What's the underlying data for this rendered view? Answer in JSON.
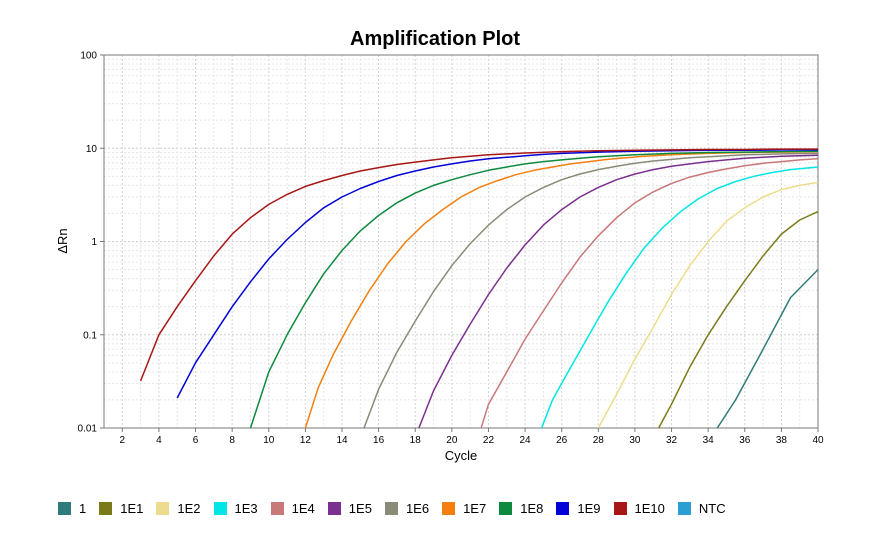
{
  "chart_data": {
    "type": "line",
    "title": "Amplification Plot",
    "xlabel": "Cycle",
    "ylabel": "ΔRn",
    "xlim": [
      1,
      40
    ],
    "ylim": [
      0.01,
      100
    ],
    "yscale": "log",
    "grid": true,
    "legend_position": "bottom",
    "x_ticks": [
      2,
      4,
      6,
      8,
      10,
      12,
      14,
      16,
      18,
      20,
      22,
      24,
      26,
      28,
      30,
      32,
      34,
      36,
      38,
      40
    ],
    "y_ticks": [
      {
        "value": 0.01,
        "label": "0.01"
      },
      {
        "value": 0.1,
        "label": "0.1"
      },
      {
        "value": 1,
        "label": "1"
      },
      {
        "value": 10,
        "label": "10"
      },
      {
        "value": 100,
        "label": "100"
      }
    ],
    "series": [
      {
        "name": "1",
        "color": "#2f7b7b",
        "points": [
          [
            34.5,
            0.01
          ],
          [
            35.5,
            0.02
          ],
          [
            37,
            0.07
          ],
          [
            38.5,
            0.25
          ],
          [
            40,
            0.5
          ]
        ]
      },
      {
        "name": "1E1",
        "color": "#7a7a1a",
        "points": [
          [
            31.3,
            0.01
          ],
          [
            32,
            0.018
          ],
          [
            33,
            0.045
          ],
          [
            34,
            0.1
          ],
          [
            35,
            0.2
          ],
          [
            36,
            0.38
          ],
          [
            37,
            0.7
          ],
          [
            38,
            1.2
          ],
          [
            39,
            1.7
          ],
          [
            40,
            2.1
          ]
        ]
      },
      {
        "name": "1E2",
        "color": "#eddc8d",
        "points": [
          [
            28,
            0.01
          ],
          [
            29,
            0.023
          ],
          [
            30,
            0.055
          ],
          [
            31,
            0.12
          ],
          [
            32,
            0.27
          ],
          [
            33,
            0.55
          ],
          [
            34,
            1.0
          ],
          [
            35,
            1.65
          ],
          [
            36,
            2.3
          ],
          [
            37,
            3.0
          ],
          [
            38,
            3.6
          ],
          [
            39,
            4.0
          ],
          [
            40,
            4.3
          ]
        ]
      },
      {
        "name": "1E3",
        "color": "#00e6e6",
        "points": [
          [
            24.9,
            0.01
          ],
          [
            25.5,
            0.02
          ],
          [
            26.5,
            0.045
          ],
          [
            27.5,
            0.1
          ],
          [
            28.5,
            0.22
          ],
          [
            29.5,
            0.45
          ],
          [
            30.5,
            0.85
          ],
          [
            31.5,
            1.4
          ],
          [
            32.5,
            2.1
          ],
          [
            33.5,
            2.9
          ],
          [
            34.5,
            3.7
          ],
          [
            35.5,
            4.4
          ],
          [
            36.5,
            5.0
          ],
          [
            37.5,
            5.5
          ],
          [
            38.5,
            5.9
          ],
          [
            40,
            6.3
          ]
        ]
      },
      {
        "name": "1E4",
        "color": "#c87878",
        "points": [
          [
            21.6,
            0.01
          ],
          [
            22,
            0.018
          ],
          [
            23,
            0.04
          ],
          [
            24,
            0.09
          ],
          [
            25,
            0.18
          ],
          [
            26,
            0.36
          ],
          [
            27,
            0.68
          ],
          [
            28,
            1.15
          ],
          [
            29,
            1.8
          ],
          [
            30,
            2.6
          ],
          [
            31,
            3.4
          ],
          [
            32,
            4.2
          ],
          [
            33,
            4.9
          ],
          [
            34,
            5.5
          ],
          [
            35,
            6.0
          ],
          [
            36,
            6.5
          ],
          [
            37,
            6.9
          ],
          [
            38,
            7.2
          ],
          [
            39,
            7.5
          ],
          [
            40,
            7.7
          ]
        ]
      },
      {
        "name": "1E5",
        "color": "#7b2f8e",
        "points": [
          [
            18.2,
            0.01
          ],
          [
            19,
            0.025
          ],
          [
            20,
            0.06
          ],
          [
            21,
            0.13
          ],
          [
            22,
            0.27
          ],
          [
            23,
            0.52
          ],
          [
            24,
            0.92
          ],
          [
            25,
            1.5
          ],
          [
            26,
            2.2
          ],
          [
            27,
            3.0
          ],
          [
            28,
            3.8
          ],
          [
            29,
            4.6
          ],
          [
            30,
            5.3
          ],
          [
            31,
            5.9
          ],
          [
            32,
            6.4
          ],
          [
            33,
            6.8
          ],
          [
            34,
            7.2
          ],
          [
            35,
            7.5
          ],
          [
            36,
            7.8
          ],
          [
            37,
            8.0
          ],
          [
            38,
            8.2
          ],
          [
            40,
            8.4
          ]
        ]
      },
      {
        "name": "1E6",
        "color": "#8a8a78",
        "points": [
          [
            15.2,
            0.01
          ],
          [
            16,
            0.026
          ],
          [
            17,
            0.065
          ],
          [
            18,
            0.14
          ],
          [
            19,
            0.29
          ],
          [
            20,
            0.55
          ],
          [
            21,
            0.95
          ],
          [
            22,
            1.5
          ],
          [
            23,
            2.2
          ],
          [
            24,
            3.0
          ],
          [
            25,
            3.8
          ],
          [
            26,
            4.6
          ],
          [
            27,
            5.3
          ],
          [
            28,
            5.9
          ],
          [
            29,
            6.4
          ],
          [
            30,
            6.9
          ],
          [
            31,
            7.3
          ],
          [
            32,
            7.6
          ],
          [
            33,
            7.9
          ],
          [
            34,
            8.1
          ],
          [
            35,
            8.3
          ],
          [
            36,
            8.5
          ],
          [
            38,
            8.7
          ],
          [
            40,
            8.8
          ]
        ]
      },
      {
        "name": "1E7",
        "color": "#f47f0f",
        "points": [
          [
            12,
            0.01
          ],
          [
            12.7,
            0.027
          ],
          [
            13.5,
            0.06
          ],
          [
            14.5,
            0.14
          ],
          [
            15.5,
            0.3
          ],
          [
            16.5,
            0.58
          ],
          [
            17.5,
            1.0
          ],
          [
            18.5,
            1.55
          ],
          [
            19.5,
            2.2
          ],
          [
            20.5,
            3.0
          ],
          [
            21.5,
            3.8
          ],
          [
            22.5,
            4.5
          ],
          [
            23.5,
            5.2
          ],
          [
            24.5,
            5.8
          ],
          [
            25.5,
            6.3
          ],
          [
            26.5,
            6.8
          ],
          [
            27.5,
            7.2
          ],
          [
            28.5,
            7.6
          ],
          [
            29.5,
            7.9
          ],
          [
            30.5,
            8.2
          ],
          [
            32,
            8.5
          ],
          [
            34,
            8.8
          ],
          [
            36,
            9.0
          ],
          [
            38,
            9.1
          ],
          [
            40,
            9.2
          ]
        ]
      },
      {
        "name": "1E8",
        "color": "#0e8a3e",
        "points": [
          [
            9,
            0.01
          ],
          [
            10,
            0.04
          ],
          [
            11,
            0.1
          ],
          [
            12,
            0.22
          ],
          [
            13,
            0.45
          ],
          [
            14,
            0.8
          ],
          [
            15,
            1.3
          ],
          [
            16,
            1.9
          ],
          [
            17,
            2.6
          ],
          [
            18,
            3.3
          ],
          [
            19,
            4.0
          ],
          [
            20,
            4.6
          ],
          [
            21,
            5.2
          ],
          [
            22,
            5.8
          ],
          [
            23,
            6.3
          ],
          [
            24,
            6.8
          ],
          [
            25,
            7.2
          ],
          [
            26,
            7.5
          ],
          [
            27,
            7.8
          ],
          [
            28,
            8.1
          ],
          [
            30,
            8.5
          ],
          [
            32,
            8.8
          ],
          [
            34,
            9.0
          ],
          [
            36,
            9.1
          ],
          [
            38,
            9.2
          ],
          [
            40,
            9.3
          ]
        ]
      },
      {
        "name": "1E9",
        "color": "#0202d6",
        "points": [
          [
            5,
            0.021
          ],
          [
            6,
            0.05
          ],
          [
            7,
            0.1
          ],
          [
            8,
            0.2
          ],
          [
            9,
            0.37
          ],
          [
            10,
            0.65
          ],
          [
            11,
            1.05
          ],
          [
            12,
            1.6
          ],
          [
            13,
            2.3
          ],
          [
            14,
            3.0
          ],
          [
            15,
            3.7
          ],
          [
            16,
            4.4
          ],
          [
            17,
            5.1
          ],
          [
            18,
            5.7
          ],
          [
            19,
            6.3
          ],
          [
            20,
            6.8
          ],
          [
            21,
            7.3
          ],
          [
            22,
            7.7
          ],
          [
            23,
            8.0
          ],
          [
            24,
            8.3
          ],
          [
            25,
            8.6
          ],
          [
            26,
            8.8
          ],
          [
            28,
            9.1
          ],
          [
            30,
            9.3
          ],
          [
            32,
            9.4
          ],
          [
            34,
            9.5
          ],
          [
            36,
            9.5
          ],
          [
            38,
            9.6
          ],
          [
            40,
            9.6
          ]
        ]
      },
      {
        "name": "1E10",
        "color": "#a81616",
        "points": [
          [
            3,
            0.032
          ],
          [
            4,
            0.1
          ],
          [
            5,
            0.2
          ],
          [
            6,
            0.38
          ],
          [
            7,
            0.7
          ],
          [
            8,
            1.2
          ],
          [
            9,
            1.8
          ],
          [
            10,
            2.5
          ],
          [
            11,
            3.2
          ],
          [
            12,
            3.9
          ],
          [
            13,
            4.5
          ],
          [
            14,
            5.1
          ],
          [
            15,
            5.7
          ],
          [
            16,
            6.2
          ],
          [
            17,
            6.7
          ],
          [
            18,
            7.1
          ],
          [
            19,
            7.5
          ],
          [
            20,
            7.9
          ],
          [
            21,
            8.2
          ],
          [
            22,
            8.5
          ],
          [
            23,
            8.7
          ],
          [
            24,
            8.9
          ],
          [
            26,
            9.2
          ],
          [
            28,
            9.4
          ],
          [
            30,
            9.5
          ],
          [
            32,
            9.6
          ],
          [
            34,
            9.7
          ],
          [
            36,
            9.7
          ],
          [
            38,
            9.8
          ],
          [
            40,
            9.8
          ]
        ]
      },
      {
        "name": "NTC",
        "color": "#2b9fd1",
        "points": []
      }
    ]
  }
}
